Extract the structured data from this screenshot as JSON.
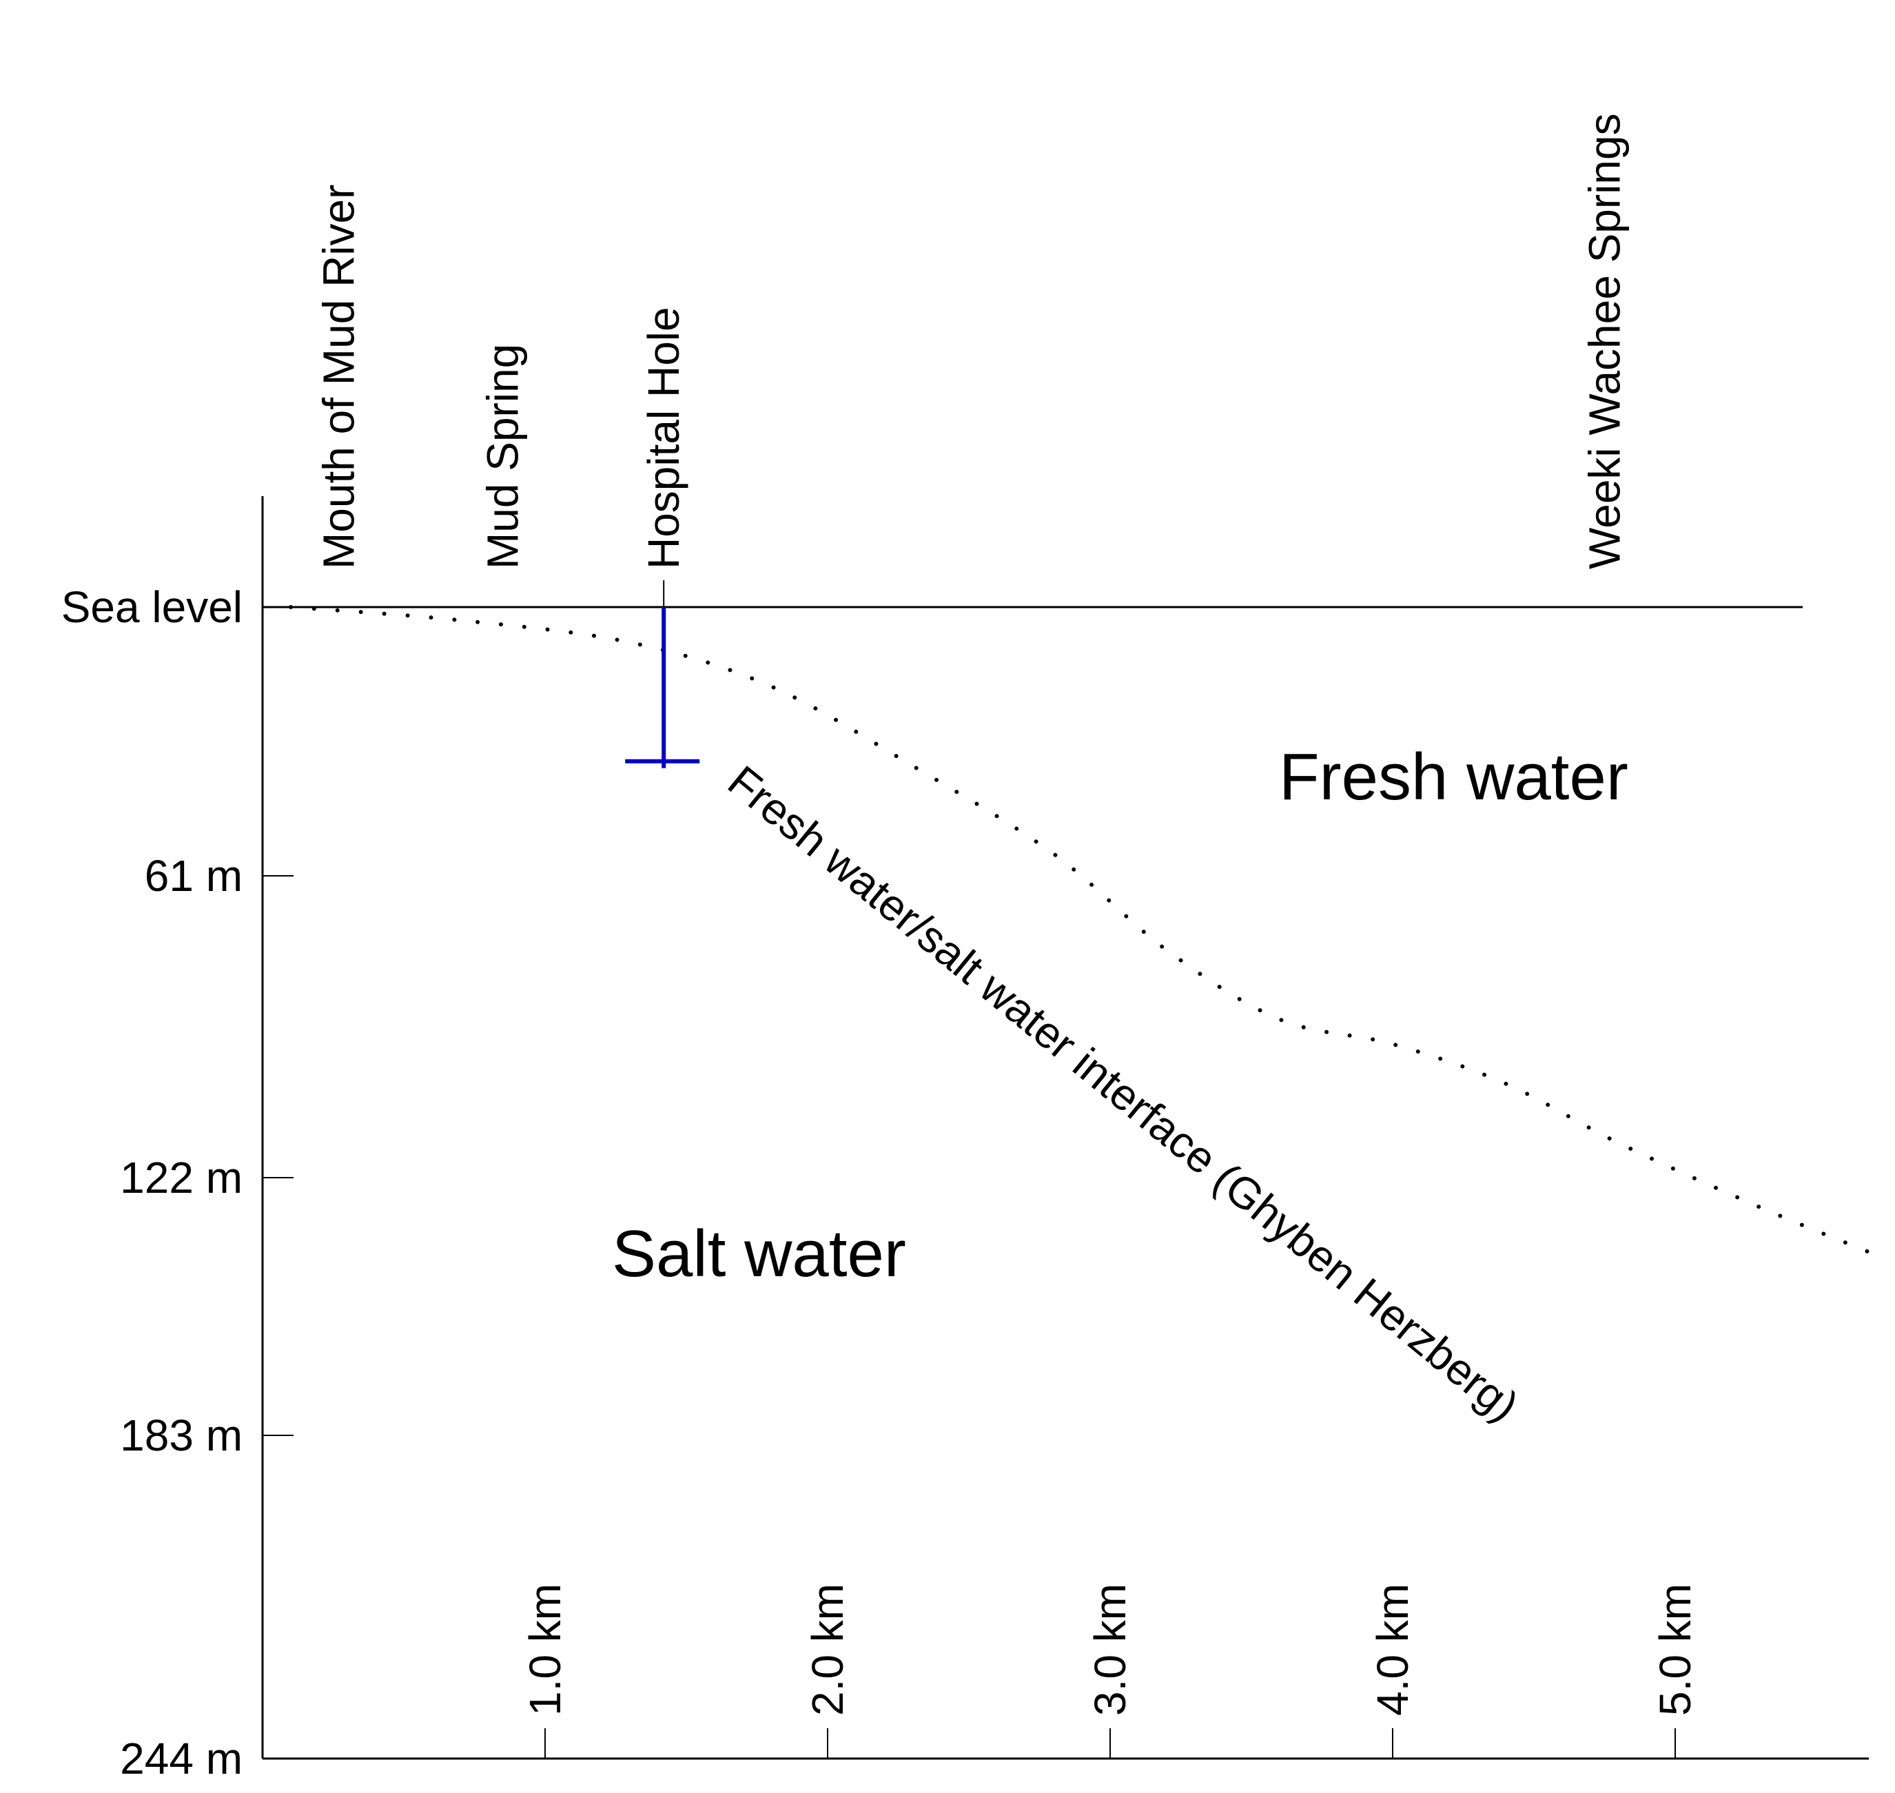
{
  "colors": {
    "ink": "#000000",
    "cave": "#0000cc",
    "background": "#ffffff"
  },
  "locations": [
    {
      "name": "Mouth of Mud River",
      "km": 0.27
    },
    {
      "name": "Mud Spring",
      "km": 0.85
    },
    {
      "name": "Hospital Hole",
      "km": 1.42
    },
    {
      "name": "Weeki Wachee Springs",
      "km": 4.75
    }
  ],
  "depth_axis": {
    "labels": [
      "Sea level",
      "61 m",
      "122 m",
      "183 m",
      "244 m"
    ],
    "values_m": [
      0,
      61,
      122,
      183,
      244
    ]
  },
  "distance_axis": {
    "labels": [
      "1.0 km",
      "2.0 km",
      "3.0 km",
      "4.0 km",
      "5.0 km"
    ],
    "values_km": [
      1,
      2,
      3,
      4,
      5
    ]
  },
  "regions": {
    "fresh": "Fresh water",
    "salt": "Salt water"
  },
  "interface_label": "Fresh water/salt water interface (Ghyben Herzberg)",
  "interface_points": [
    {
      "km": 0.1,
      "depth_m": 0
    },
    {
      "km": 0.7,
      "depth_m": 3
    },
    {
      "km": 1.3,
      "depth_m": 8
    },
    {
      "km": 1.8,
      "depth_m": 18
    },
    {
      "km": 2.3,
      "depth_m": 36
    },
    {
      "km": 2.8,
      "depth_m": 56
    },
    {
      "km": 3.2,
      "depth_m": 76
    },
    {
      "km": 3.6,
      "depth_m": 90
    },
    {
      "km": 4.0,
      "depth_m": 95
    },
    {
      "km": 4.4,
      "depth_m": 103
    },
    {
      "km": 4.8,
      "depth_m": 115
    },
    {
      "km": 5.3,
      "depth_m": 129
    },
    {
      "km": 5.7,
      "depth_m": 140
    }
  ],
  "hospital_hole_cave": {
    "km": 1.42,
    "depth_m": 35
  }
}
